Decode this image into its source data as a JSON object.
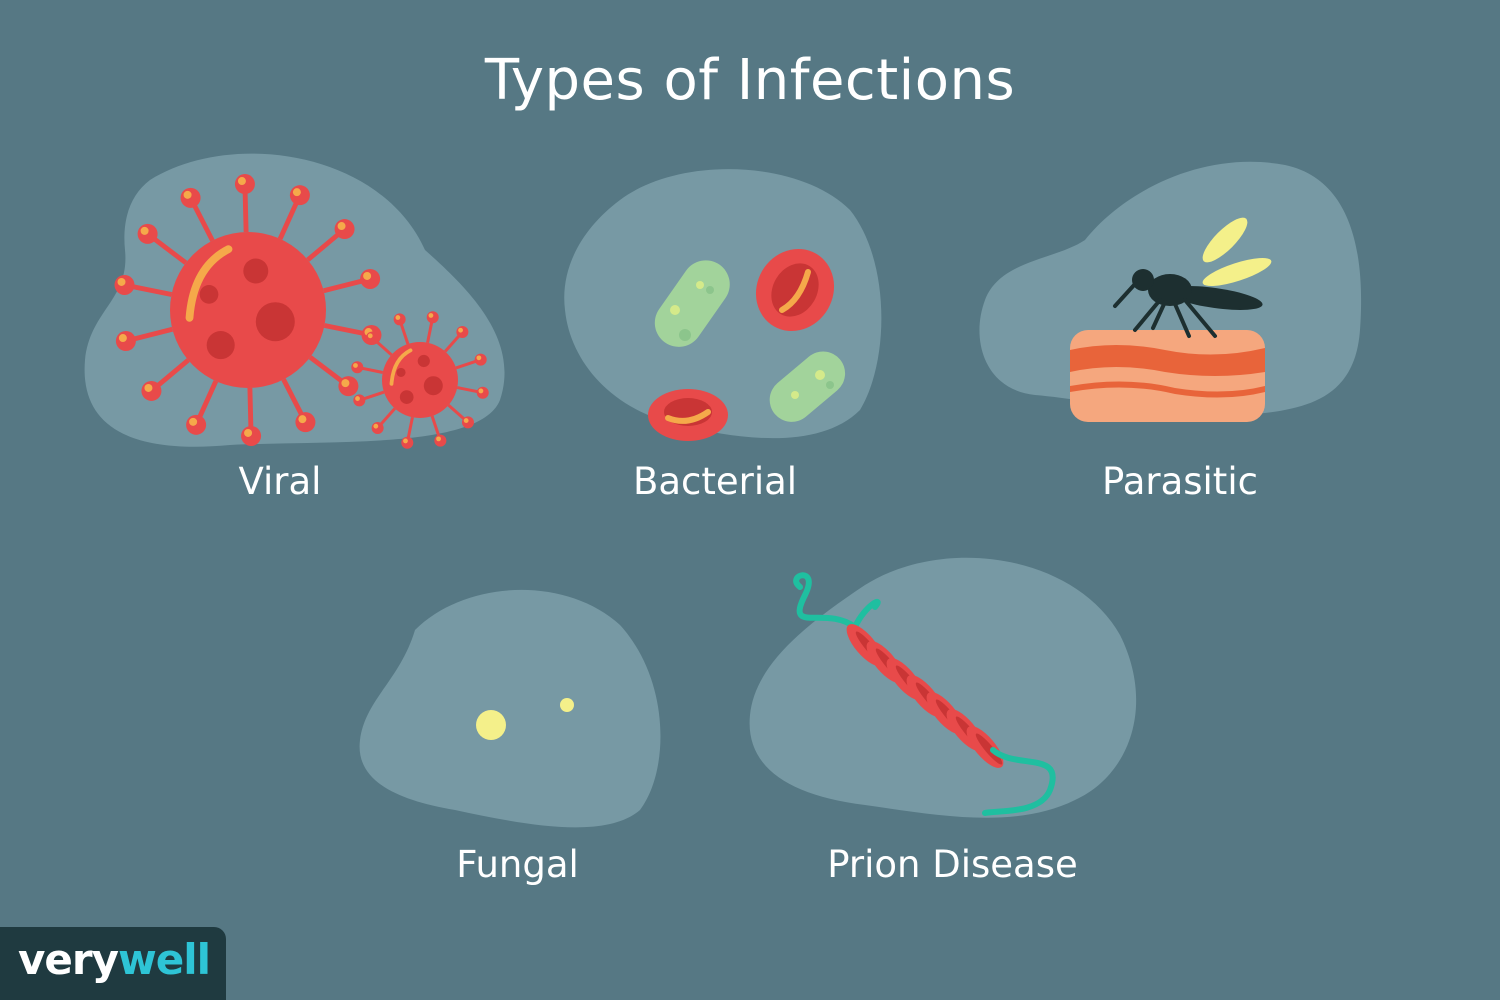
{
  "title": "Types of Infections",
  "categories": [
    {
      "label": "Viral",
      "icon": "virus-icon"
    },
    {
      "label": "Bacterial",
      "icon": "bacteria-icon"
    },
    {
      "label": "Parasitic",
      "icon": "mosquito-icon"
    },
    {
      "label": "Fungal",
      "icon": "fungus-spores-icon"
    },
    {
      "label": "Prion Disease",
      "icon": "prion-protein-icon"
    }
  ],
  "logo": {
    "part1": "very",
    "part2": "well"
  },
  "colors": {
    "background": "#567884",
    "blob": "#7799a4",
    "virus": "#e84a4a",
    "bacteria": "#a2d39b",
    "prion_strand": "#1fbfa0",
    "brand_accent": "#2ec4d6"
  }
}
